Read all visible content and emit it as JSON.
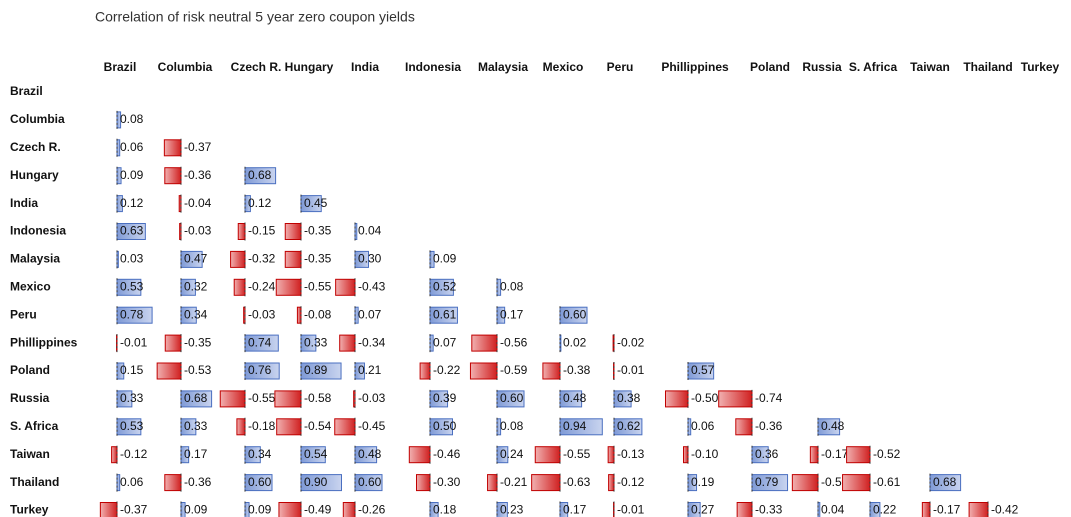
{
  "title": "Correlation of risk neutral 5 year zero coupon yields",
  "table": {
    "columns": [
      "Brazil",
      "Columbia",
      "Czech R.",
      "Hungary",
      "India",
      "Indonesia",
      "Malaysia",
      "Mexico",
      "Peru",
      "Phillippines",
      "Poland",
      "Russia",
      "S. Africa",
      "Taiwan",
      "Thailand",
      "Turkey"
    ],
    "rows": [
      {
        "label": "Brazil",
        "cells": []
      },
      {
        "label": "Columbia",
        "cells": [
          "0.08"
        ]
      },
      {
        "label": "Czech R.",
        "cells": [
          "0.06",
          "-0.37"
        ]
      },
      {
        "label": "Hungary",
        "cells": [
          "0.09",
          "-0.36",
          "0.68"
        ]
      },
      {
        "label": "India",
        "cells": [
          "0.12",
          "-0.04",
          "0.12",
          "0.45"
        ]
      },
      {
        "label": "Indonesia",
        "cells": [
          "0.63",
          "-0.03",
          "-0.15",
          "-0.35",
          "0.04"
        ]
      },
      {
        "label": "Malaysia",
        "cells": [
          "0.03",
          "0.47",
          "-0.32",
          "-0.35",
          "0.30",
          "0.09"
        ]
      },
      {
        "label": "Mexico",
        "cells": [
          "0.53",
          "0.32",
          "-0.24",
          "-0.55",
          "-0.43",
          "0.52",
          "0.08"
        ]
      },
      {
        "label": "Peru",
        "cells": [
          "0.78",
          "0.34",
          "-0.03",
          "-0.08",
          "0.07",
          "0.61",
          "0.17",
          "0.60"
        ]
      },
      {
        "label": "Phillippines",
        "cells": [
          "-0.01",
          "-0.35",
          "0.74",
          "0.33",
          "-0.34",
          "0.07",
          "-0.56",
          "0.02",
          "-0.02"
        ]
      },
      {
        "label": "Poland",
        "cells": [
          "0.15",
          "-0.53",
          "0.76",
          "0.89",
          "0.21",
          "-0.22",
          "-0.59",
          "-0.38",
          "-0.01",
          "0.57"
        ]
      },
      {
        "label": "Russia",
        "cells": [
          "0.33",
          "0.68",
          "-0.55",
          "-0.58",
          "-0.03",
          "0.39",
          "0.60",
          "0.48",
          "0.38",
          "-0.50",
          "-0.74"
        ]
      },
      {
        "label": "S. Africa",
        "cells": [
          "0.53",
          "0.33",
          "-0.18",
          "-0.54",
          "-0.45",
          "0.50",
          "0.08",
          "0.94",
          "0.62",
          "0.06",
          "-0.36",
          "0.48"
        ]
      },
      {
        "label": "Taiwan",
        "cells": [
          "-0.12",
          "0.17",
          "0.34",
          "0.54",
          "0.48",
          "-0.46",
          "0.24",
          "-0.55",
          "-0.13",
          "-0.10",
          "0.36",
          "-0.17",
          "-0.52"
        ]
      },
      {
        "label": "Thailand",
        "cells": [
          "0.06",
          "-0.36",
          "0.60",
          "0.90",
          "0.60",
          "-0.30",
          "-0.21",
          "-0.63",
          "-0.12",
          "0.19",
          "0.79",
          "-0.57",
          "-0.61",
          "0.68"
        ]
      },
      {
        "label": "Turkey",
        "cells": [
          "-0.37",
          "0.09",
          "0.09",
          "-0.49",
          "-0.26",
          "0.18",
          "0.23",
          "0.17",
          "-0.01",
          "0.27",
          "-0.33",
          "0.04",
          "0.22",
          "-0.17",
          "-0.42"
        ]
      }
    ]
  }
}
